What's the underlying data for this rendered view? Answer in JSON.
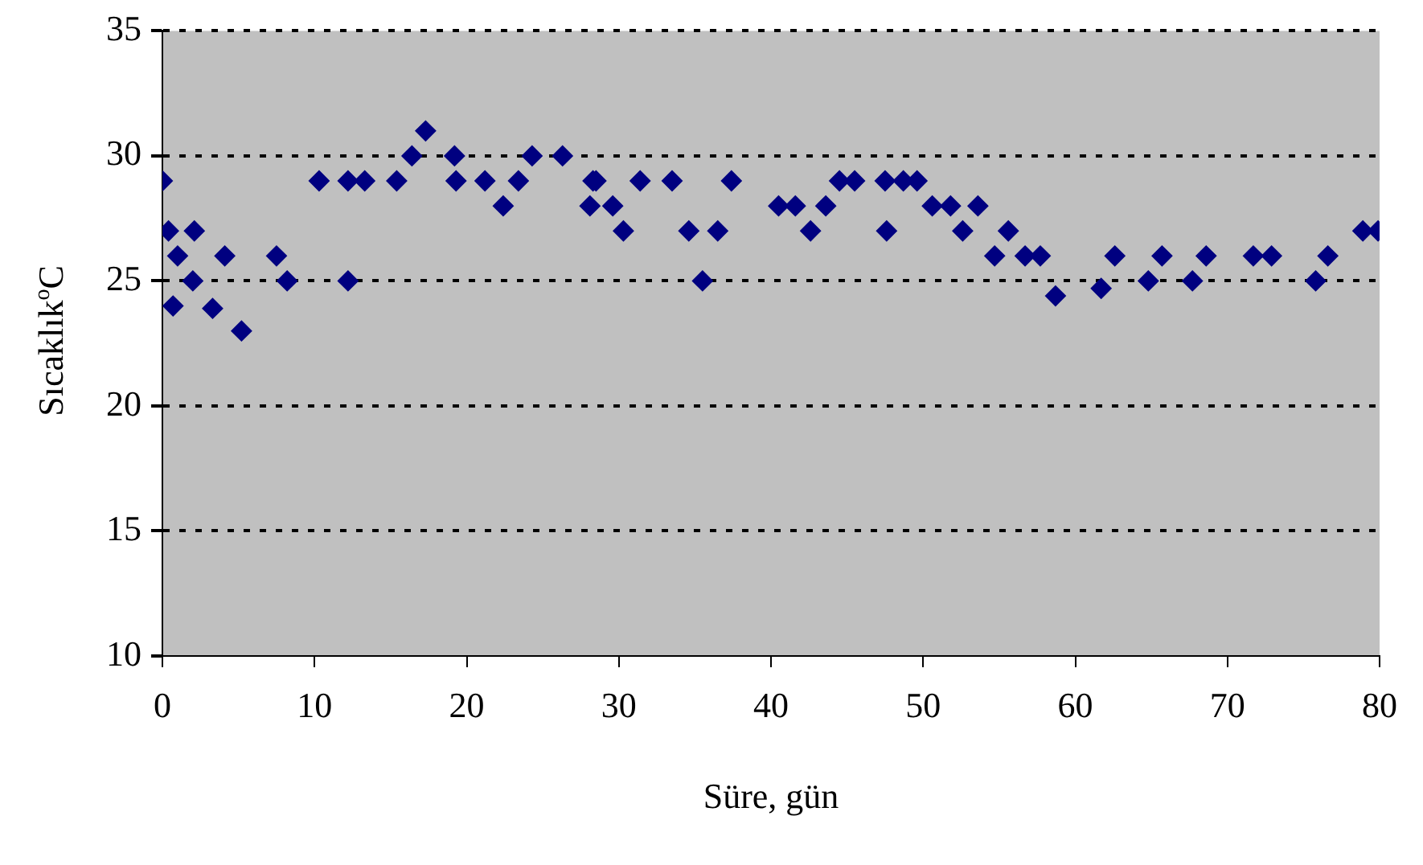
{
  "chart_data": {
    "type": "scatter",
    "xlabel": "Süre, gün",
    "ylabel": "Sıcaklık$^{o}$C",
    "xlim": [
      0,
      80
    ],
    "xticks": [
      0,
      10,
      20,
      30,
      40,
      50,
      60,
      70,
      80
    ],
    "ylim": [
      10,
      35
    ],
    "yticks": [
      10,
      15,
      20,
      25,
      30,
      35
    ],
    "grid": "y",
    "marker": "diamond",
    "legend": false,
    "series": [
      {
        "color": "#000080",
        "x": [
          0,
          0.4,
          1,
          0.7,
          2.1,
          2,
          3.3,
          4.1,
          5.2,
          7.5,
          8.2,
          10.3,
          12.2,
          12.2,
          13.3,
          15.4,
          16.4,
          17.3,
          19.2,
          19.3,
          21.2,
          22.4,
          23.4,
          24.3,
          26.3,
          28.1,
          28.3,
          28.5,
          29.6,
          30.3,
          31.4,
          33.5,
          34.6,
          35.5,
          36.5,
          37.4,
          40.5,
          41.6,
          42.6,
          43.6,
          44.5,
          45.5,
          47.5,
          47.6,
          48.7,
          49.6,
          50.6,
          51.8,
          52.6,
          53.6,
          54.7,
          55.6,
          56.7,
          57.7,
          58.7,
          61.7,
          62.6,
          64.8,
          65.7,
          67.7,
          68.6,
          71.7,
          72.9,
          75.8,
          76.6,
          78.9,
          79.9
        ],
        "values": [
          29,
          27,
          26,
          24,
          27,
          25,
          23.9,
          26,
          23,
          26,
          25,
          29,
          29,
          25,
          29,
          29,
          30,
          31,
          30,
          29,
          29,
          28,
          29,
          30,
          30,
          28,
          29,
          29,
          28,
          27,
          29,
          29,
          27,
          25,
          27,
          29,
          28,
          28,
          27,
          28,
          29,
          29,
          29,
          27,
          29,
          29,
          28,
          28,
          27,
          28,
          26,
          27,
          26,
          26,
          24.4,
          24.7,
          26,
          25,
          26,
          25,
          26,
          26,
          26,
          25,
          26,
          27,
          27
        ]
      }
    ]
  }
}
